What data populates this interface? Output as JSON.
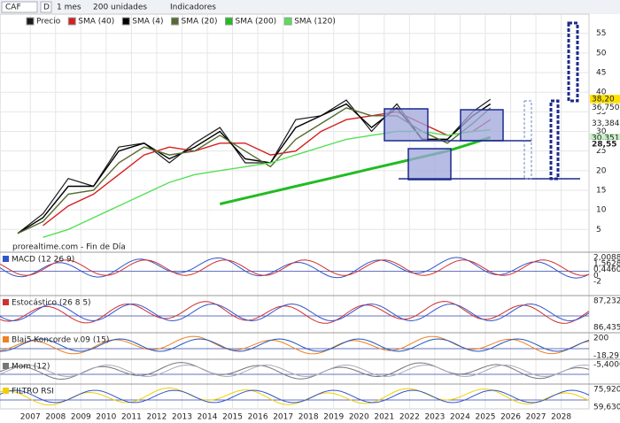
{
  "toolbar": {
    "symbol": "CAF",
    "mode": "D",
    "period": "1 mes",
    "units": "200 unidades",
    "indicators": "Indicadores"
  },
  "watermark": "prorealtime.com - Fin de Día",
  "chart_data": {
    "type": "line",
    "x": [
      2006.5,
      2007.5,
      2008.5,
      2009.5,
      2010.5,
      2011.5,
      2012.5,
      2013.5,
      2014.5,
      2015.5,
      2016.5,
      2017.5,
      2018.5,
      2019.5,
      2020.5,
      2021.5,
      2022.5,
      2023.5,
      2024.5,
      2025.2
    ],
    "series": [
      {
        "name": "Precio",
        "color": "#1a1a1a",
        "values": [
          4,
          9,
          18,
          16,
          26,
          27,
          22,
          27,
          31,
          22,
          22,
          33,
          34,
          38,
          30,
          37,
          28,
          28,
          35,
          38.2
        ]
      },
      {
        "name": "SMA (40)",
        "color": "#d42020",
        "values": [
          null,
          6,
          11,
          14,
          19,
          24,
          26,
          25,
          27,
          27,
          24,
          25,
          30,
          33,
          34,
          35,
          32,
          29,
          30,
          33
        ]
      },
      {
        "name": "SMA (4)",
        "color": "#000000",
        "values": [
          4,
          8,
          16,
          16,
          25,
          27,
          23,
          26,
          30,
          23,
          22,
          31,
          34,
          37,
          31,
          36,
          28,
          28,
          34,
          37
        ]
      },
      {
        "name": "SMA (20)",
        "color": "#556b2f",
        "values": [
          4,
          7,
          14,
          15,
          22,
          26,
          24,
          25,
          29,
          25,
          21,
          28,
          32,
          36,
          34,
          34,
          30,
          27,
          32,
          36
        ]
      },
      {
        "name": "SMA (200)",
        "color": "#22bb22",
        "values": [
          null,
          null,
          null,
          null,
          null,
          null,
          null,
          null,
          11.5,
          13,
          14.5,
          16,
          17.5,
          19,
          20.5,
          22,
          23.5,
          25,
          27,
          28.5
        ]
      },
      {
        "name": "SMA (120)",
        "color": "#55e055",
        "values": [
          null,
          3,
          5,
          8,
          11,
          14,
          17,
          19,
          20,
          21,
          22,
          24,
          26,
          28,
          29,
          30,
          30,
          29,
          30,
          30.4
        ]
      }
    ],
    "xlim": [
      2005.8,
      2029.1
    ],
    "xticks": [
      2007,
      2008,
      2009,
      2010,
      2011,
      2012,
      2013,
      2014,
      2015,
      2016,
      2017,
      2018,
      2019,
      2020,
      2021,
      2022,
      2023,
      2024,
      2025,
      2026,
      2027,
      2028
    ],
    "ylim": [
      -0.8,
      59.9
    ],
    "yticks": [
      5,
      10,
      15,
      20,
      25,
      30,
      35,
      40,
      45,
      50,
      55
    ],
    "grid": true,
    "price_tags": [
      {
        "value": 38.2,
        "label": "38,20",
        "color": "#ffe000"
      },
      {
        "value": 36.75,
        "label": "36,750",
        "color": "#ffffff"
      },
      {
        "value": 33.384,
        "label": "33,384",
        "color": "#ffffff"
      },
      {
        "value": 30.351,
        "label": "30,351",
        "color": "#c8f0c8"
      },
      {
        "value": 28.55,
        "label": "28,55",
        "color": "#ffffff"
      }
    ]
  },
  "panels": [
    {
      "title": "MACD (12 26 9)",
      "labels": [
        "2,0088",
        "1,5628",
        "0,4460",
        "0",
        "-2"
      ]
    },
    {
      "title": "Estocástico (26 8 5)",
      "labels": [
        "87,232",
        "86,435"
      ]
    },
    {
      "title": "Blai5 Koncorde v.09 (15)",
      "labels": [
        "200",
        "-18,297"
      ]
    },
    {
      "title": "Mom (12)",
      "labels": [
        "-5,4000"
      ]
    },
    {
      "title": "FILTRO RSI",
      "labels": [
        "75,920",
        "59,630"
      ]
    }
  ]
}
